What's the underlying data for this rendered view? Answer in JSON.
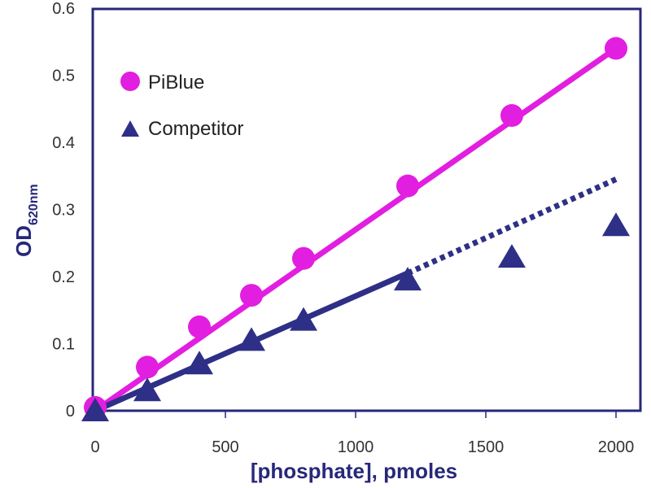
{
  "chart_data": {
    "type": "scatter",
    "xlabel": "[phosphate], pmoles",
    "ylabel_main": "OD",
    "ylabel_sub": "620nm",
    "xlim": [
      0,
      2000
    ],
    "ylim": [
      0,
      0.6
    ],
    "xticks": [
      "0",
      "500",
      "1000",
      "1500",
      "2000"
    ],
    "yticks": [
      "0",
      "0.1",
      "0.2",
      "0.3",
      "0.4",
      "0.5",
      "0.6"
    ],
    "grid": false,
    "legend_placement": "top-left",
    "series": [
      {
        "name": "PiBlue",
        "marker": "circle",
        "color": "#e21ee0",
        "x": [
          0,
          200,
          400,
          600,
          800,
          1200,
          1600,
          2000
        ],
        "y": [
          0.005,
          0.065,
          0.125,
          0.172,
          0.227,
          0.335,
          0.44,
          0.54
        ],
        "fit_line": {
          "x": [
            0,
            2000
          ],
          "y": [
            0,
            0.54
          ],
          "style": "solid"
        }
      },
      {
        "name": "Competitor",
        "marker": "triangle",
        "color": "#2e2f86",
        "x": [
          0,
          200,
          400,
          600,
          800,
          1200,
          1600,
          2000
        ],
        "y": [
          0,
          0.03,
          0.07,
          0.105,
          0.135,
          0.195,
          0.229,
          0.276
        ],
        "fit_line": {
          "x": [
            0,
            1200
          ],
          "y": [
            0,
            0.205
          ],
          "style": "solid"
        },
        "extrapolation": {
          "x": [
            1200,
            2000
          ],
          "y": [
            0.205,
            0.345
          ],
          "style": "dotted"
        }
      }
    ]
  }
}
